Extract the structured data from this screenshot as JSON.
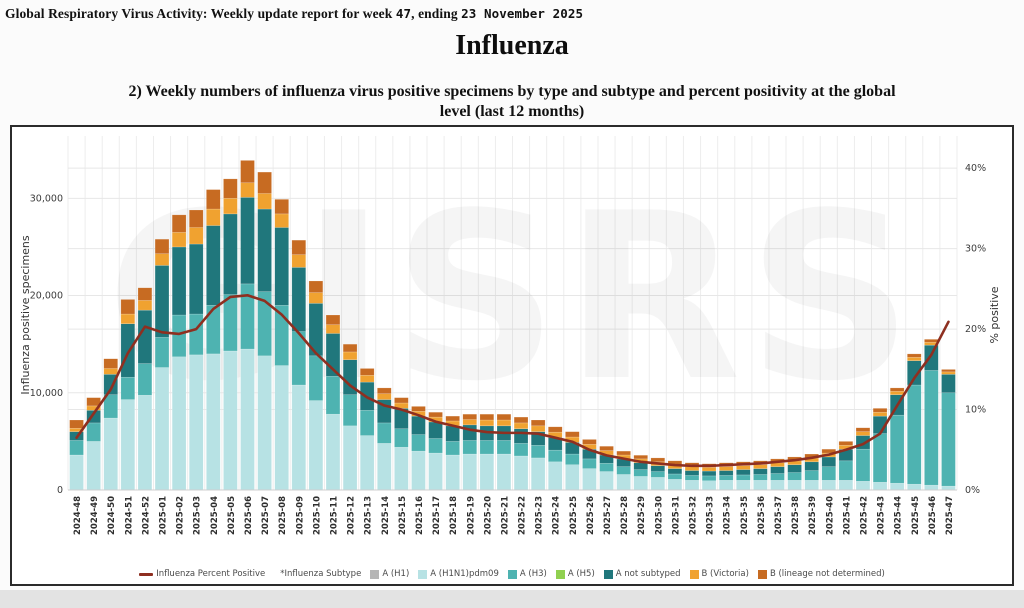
{
  "page": {
    "header_prefix": "Global Respiratory Virus Activity: Weekly update report for week ",
    "header_week": "47",
    "header_mid": ", ending ",
    "header_date": "23 November 2025",
    "title": "Influenza",
    "subtitle_line1": "2) Weekly numbers of influenza virus positive specimens by type and subtype and percent positivity at the global",
    "subtitle_line2": "level (last 12 months)"
  },
  "legend": {
    "line_label": "Influenza Percent Positive",
    "subtype_label": "*Influenza Subtype"
  },
  "watermark": "GISRS",
  "chart_data": {
    "type": "bar",
    "subtype": "stacked-bars-with-percent-line",
    "title": "",
    "xlabel": "",
    "categories": [
      "2024-48",
      "2024-49",
      "2024-50",
      "2024-51",
      "2024-52",
      "2025-01",
      "2025-02",
      "2025-03",
      "2025-04",
      "2025-05",
      "2025-06",
      "2025-07",
      "2025-08",
      "2025-09",
      "2025-10",
      "2025-11",
      "2025-12",
      "2025-13",
      "2025-14",
      "2025-15",
      "2025-16",
      "2025-17",
      "2025-18",
      "2025-19",
      "2025-20",
      "2025-21",
      "2025-22",
      "2025-23",
      "2025-24",
      "2025-25",
      "2025-26",
      "2025-27",
      "2025-28",
      "2025-29",
      "2025-30",
      "2025-31",
      "2025-32",
      "2025-33",
      "2025-34",
      "2025-35",
      "2025-36",
      "2025-37",
      "2025-38",
      "2025-39",
      "2025-40",
      "2025-41",
      "2025-42",
      "2025-43",
      "2025-44",
      "2025-45",
      "2025-46",
      "2025-47"
    ],
    "series": [
      {
        "name": "A (H1)",
        "color": "#b5b5b5",
        "values": [
          0,
          0,
          0,
          0,
          0,
          0,
          0,
          0,
          0,
          0,
          0,
          0,
          0,
          0,
          0,
          0,
          0,
          0,
          0,
          0,
          0,
          0,
          0,
          0,
          0,
          0,
          0,
          0,
          0,
          0,
          0,
          0,
          0,
          0,
          0,
          0,
          0,
          0,
          0,
          0,
          0,
          0,
          0,
          0,
          0,
          0,
          0,
          0,
          0,
          0,
          0,
          0
        ]
      },
      {
        "name": "A (H1N1)pdm09",
        "color": "#b7e2e4",
        "values": [
          3600,
          5000,
          7400,
          9300,
          9750,
          12600,
          13700,
          13900,
          14000,
          14300,
          14500,
          13800,
          12800,
          10800,
          9200,
          7800,
          6600,
          5600,
          4800,
          4400,
          4000,
          3800,
          3600,
          3700,
          3700,
          3700,
          3500,
          3300,
          2900,
          2600,
          2200,
          1900,
          1600,
          1400,
          1300,
          1100,
          1000,
          950,
          1000,
          1000,
          1000,
          1000,
          1000,
          1000,
          1000,
          1000,
          900,
          800,
          700,
          600,
          500,
          400
        ]
      },
      {
        "name": "A (H3)",
        "color": "#4eb3b1",
        "values": [
          1500,
          1900,
          2400,
          2300,
          3250,
          3100,
          4300,
          4200,
          5000,
          5800,
          6700,
          6600,
          6200,
          5500,
          4600,
          3900,
          3200,
          2600,
          2100,
          1900,
          1700,
          1500,
          1400,
          1400,
          1400,
          1400,
          1300,
          1300,
          1200,
          1100,
          1000,
          850,
          800,
          700,
          600,
          550,
          500,
          500,
          500,
          550,
          600,
          700,
          800,
          1000,
          1400,
          2000,
          3300,
          5000,
          7000,
          10200,
          11800,
          9600
        ]
      },
      {
        "name": "A (H5)",
        "color": "#90d050",
        "values": [
          0,
          0,
          0,
          0,
          0,
          0,
          0,
          0,
          0,
          0,
          0,
          0,
          0,
          0,
          0,
          0,
          0,
          0,
          0,
          0,
          0,
          0,
          0,
          0,
          0,
          0,
          0,
          0,
          0,
          0,
          0,
          0,
          0,
          0,
          0,
          0,
          0,
          0,
          0,
          0,
          0,
          0,
          0,
          0,
          0,
          0,
          0,
          0,
          0,
          0,
          0,
          0
        ]
      },
      {
        "name": "A not subtyped",
        "color": "#20777c",
        "values": [
          900,
          1300,
          2100,
          5500,
          5500,
          7400,
          7000,
          7200,
          8200,
          8300,
          8900,
          8500,
          8000,
          6600,
          5400,
          4400,
          3600,
          2900,
          2400,
          2100,
          1900,
          1700,
          1600,
          1600,
          1500,
          1500,
          1500,
          1400,
          1300,
          1200,
          1000,
          850,
          800,
          700,
          600,
          550,
          500,
          500,
          500,
          550,
          600,
          700,
          800,
          900,
          1000,
          1200,
          1400,
          1800,
          2100,
          2500,
          2600,
          1900
        ]
      },
      {
        "name": "B (Victoria)",
        "color": "#f0a230",
        "values": [
          350,
          450,
          600,
          1000,
          1000,
          1200,
          1500,
          1700,
          1700,
          1600,
          1500,
          1600,
          1400,
          1300,
          1100,
          900,
          800,
          700,
          600,
          550,
          500,
          500,
          500,
          550,
          600,
          600,
          600,
          600,
          550,
          550,
          500,
          450,
          400,
          400,
          400,
          400,
          400,
          375,
          400,
          400,
          400,
          400,
          400,
          400,
          400,
          400,
          400,
          400,
          350,
          350,
          300,
          250
        ]
      },
      {
        "name": "B (lineage not determined)",
        "color": "#c76b22",
        "values": [
          850,
          850,
          1000,
          1500,
          1300,
          1500,
          1800,
          1800,
          2000,
          2000,
          2300,
          2200,
          1500,
          1500,
          1200,
          1000,
          800,
          700,
          600,
          550,
          500,
          500,
          500,
          550,
          600,
          600,
          600,
          600,
          550,
          550,
          500,
          450,
          400,
          375,
          400,
          400,
          400,
          375,
          400,
          400,
          400,
          400,
          400,
          400,
          400,
          400,
          400,
          400,
          350,
          350,
          300,
          250
        ]
      }
    ],
    "line": {
      "name": "Influenza Percent Positive",
      "color": "#8e2f20",
      "values": [
        6.5,
        9.5,
        12.5,
        17.0,
        20.3,
        19.6,
        19.4,
        20.0,
        22.5,
        24.0,
        24.2,
        23.5,
        21.8,
        19.5,
        17.0,
        15.0,
        13.0,
        11.5,
        10.5,
        10.0,
        9.3,
        8.5,
        8.0,
        7.5,
        7.2,
        7.1,
        7.1,
        7.0,
        6.5,
        6.0,
        5.0,
        4.3,
        3.9,
        3.5,
        3.3,
        3.1,
        3.0,
        3.0,
        3.1,
        3.2,
        3.3,
        3.5,
        3.7,
        4.0,
        4.4,
        5.0,
        5.7,
        7.0,
        10.5,
        13.9,
        16.8,
        20.9
      ]
    },
    "left_axis": {
      "title": "Influenza positive specimens",
      "ticks": [
        0,
        10000,
        20000,
        30000
      ],
      "max": 36000
    },
    "right_axis": {
      "title": "% positive",
      "ticks": [
        0,
        10,
        20,
        30,
        40
      ],
      "max": 43.5,
      "suffix": "%"
    },
    "grid": true,
    "legend_position": "bottom"
  }
}
